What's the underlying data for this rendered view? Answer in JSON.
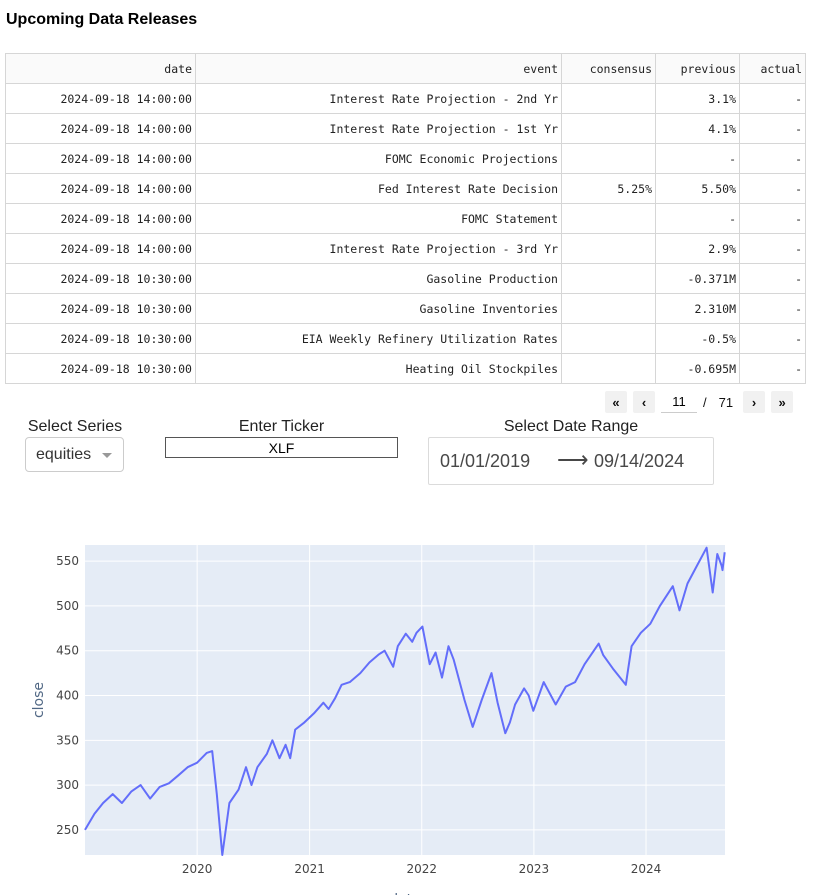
{
  "page_title": "Upcoming Data Releases",
  "table": {
    "columns": [
      "date",
      "event",
      "consensus",
      "previous",
      "actual"
    ],
    "rows": [
      [
        "2024-09-18 14:00:00",
        "Interest Rate Projection - 2nd Yr",
        "",
        "3.1%",
        "-"
      ],
      [
        "2024-09-18 14:00:00",
        "Interest Rate Projection - 1st Yr",
        "",
        "4.1%",
        "-"
      ],
      [
        "2024-09-18 14:00:00",
        "FOMC Economic Projections",
        "",
        "-",
        "-"
      ],
      [
        "2024-09-18 14:00:00",
        "Fed Interest Rate Decision",
        "5.25%",
        "5.50%",
        "-"
      ],
      [
        "2024-09-18 14:00:00",
        "FOMC Statement",
        "",
        "-",
        "-"
      ],
      [
        "2024-09-18 14:00:00",
        "Interest Rate Projection - 3rd Yr",
        "",
        "2.9%",
        "-"
      ],
      [
        "2024-09-18 10:30:00",
        "Gasoline Production",
        "",
        "-0.371M",
        "-"
      ],
      [
        "2024-09-18 10:30:00",
        "Gasoline Inventories",
        "",
        "2.310M",
        "-"
      ],
      [
        "2024-09-18 10:30:00",
        "EIA Weekly Refinery Utilization Rates",
        "",
        "-0.5%",
        "-"
      ],
      [
        "2024-09-18 10:30:00",
        "Heating Oil Stockpiles",
        "",
        "-0.695M",
        "-"
      ]
    ]
  },
  "pagination": {
    "first": "«",
    "prev": "‹",
    "current_page": "11",
    "separator": "/",
    "total_pages": "71",
    "next": "›",
    "last": "»"
  },
  "controls": {
    "series_label": "Select Series",
    "series_value": "equities",
    "ticker_label": "Enter Ticker",
    "ticker_value": "XLF",
    "date_range_label": "Select Date Range",
    "start_date": "01/01/2019",
    "arrow": "⟶",
    "end_date": "09/14/2024"
  },
  "chart_data": {
    "type": "line",
    "xlabel": "date",
    "ylabel": "close",
    "x_ticks": [
      "2020",
      "2021",
      "2022",
      "2023",
      "2024"
    ],
    "y_ticks": [
      250,
      300,
      350,
      400,
      450,
      500,
      550
    ],
    "xlim": [
      "2019-01-01",
      "2024-09-14"
    ],
    "ylim": [
      222,
      568
    ],
    "line_color": "#636efa",
    "plot_bg": "#e5ecf6",
    "x": [
      "2019-01-01",
      "2019-02-01",
      "2019-03-01",
      "2019-04-01",
      "2019-05-01",
      "2019-06-01",
      "2019-07-01",
      "2019-08-01",
      "2019-09-01",
      "2019-10-01",
      "2019-11-01",
      "2019-12-01",
      "2020-01-01",
      "2020-02-01",
      "2020-02-19",
      "2020-03-05",
      "2020-03-23",
      "2020-04-15",
      "2020-05-15",
      "2020-06-08",
      "2020-06-26",
      "2020-07-15",
      "2020-08-15",
      "2020-09-02",
      "2020-09-25",
      "2020-10-15",
      "2020-10-30",
      "2020-11-15",
      "2020-12-15",
      "2021-01-15",
      "2021-02-15",
      "2021-03-04",
      "2021-03-25",
      "2021-04-15",
      "2021-05-12",
      "2021-06-15",
      "2021-07-15",
      "2021-08-15",
      "2021-09-02",
      "2021-09-30",
      "2021-10-15",
      "2021-11-10",
      "2021-12-01",
      "2021-12-15",
      "2022-01-03",
      "2022-01-27",
      "2022-02-15",
      "2022-03-08",
      "2022-03-29",
      "2022-04-15",
      "2022-05-20",
      "2022-06-16",
      "2022-07-15",
      "2022-08-16",
      "2022-09-05",
      "2022-09-30",
      "2022-10-15",
      "2022-11-01",
      "2022-11-30",
      "2022-12-15",
      "2022-12-30",
      "2023-01-15",
      "2023-02-02",
      "2023-03-13",
      "2023-04-15",
      "2023-05-15",
      "2023-06-15",
      "2023-07-31",
      "2023-08-15",
      "2023-09-15",
      "2023-10-27",
      "2023-11-15",
      "2023-12-15",
      "2024-01-15",
      "2024-02-15",
      "2024-03-28",
      "2024-04-19",
      "2024-05-15",
      "2024-06-15",
      "2024-07-16",
      "2024-08-05",
      "2024-08-20",
      "2024-09-03",
      "2024-09-06",
      "2024-09-13"
    ],
    "y": [
      250,
      268,
      280,
      290,
      280,
      293,
      300,
      285,
      298,
      302,
      311,
      320,
      325,
      336,
      338,
      290,
      222,
      280,
      295,
      320,
      300,
      320,
      335,
      350,
      330,
      345,
      330,
      362,
      370,
      380,
      392,
      385,
      397,
      412,
      415,
      425,
      437,
      446,
      450,
      432,
      455,
      469,
      460,
      470,
      477,
      435,
      448,
      420,
      455,
      440,
      395,
      365,
      395,
      425,
      392,
      358,
      370,
      390,
      408,
      400,
      383,
      398,
      415,
      390,
      410,
      415,
      435,
      458,
      445,
      430,
      412,
      455,
      470,
      480,
      500,
      522,
      495,
      525,
      545,
      565,
      515,
      558,
      545,
      540,
      560
    ]
  }
}
